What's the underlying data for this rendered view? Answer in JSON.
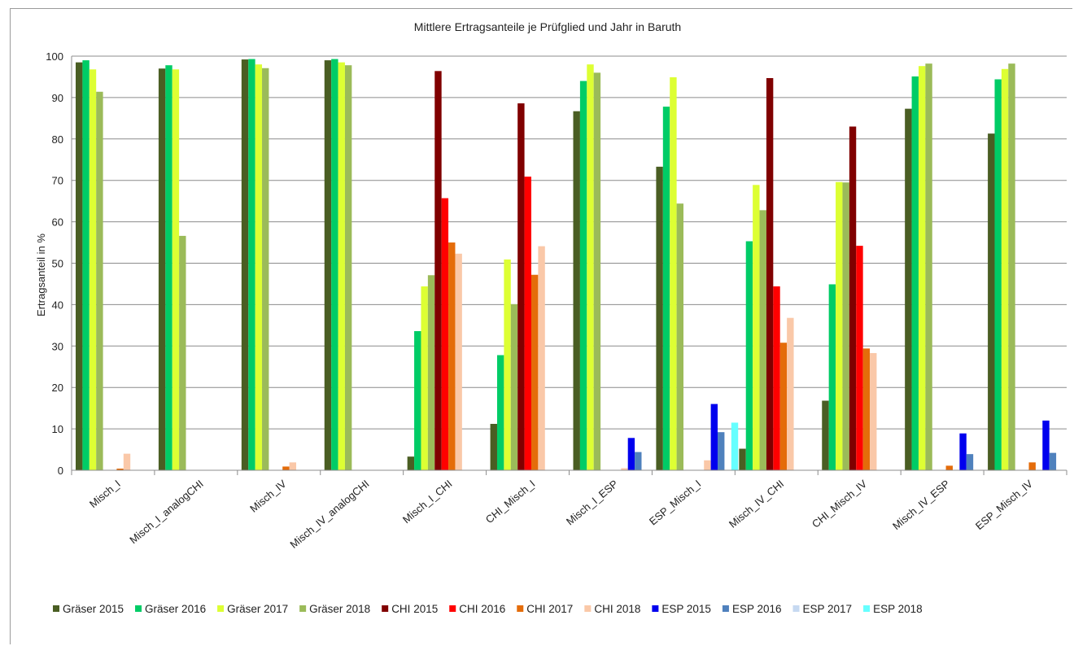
{
  "chart_data": {
    "type": "bar",
    "title": "Mittlere  Ertragsanteile je Prüfglied und  Jahr in Baruth",
    "xlabel": "",
    "ylabel": "Ertragsanteil  in %",
    "ylim": [
      0,
      100
    ],
    "yticks": [
      0,
      10,
      20,
      30,
      40,
      50,
      60,
      70,
      80,
      90,
      100
    ],
    "grid": true,
    "legend_position": "bottom",
    "categories": [
      "Misch_I",
      "Misch_I_analogCHI",
      "Misch_IV",
      "Misch_IV_analogCHI",
      "Misch_I_CHI",
      "CHI_Misch_I",
      "Misch_I_ESP",
      "ESP_Misch_I",
      "Misch_IV_CHI",
      "CHI_Misch_IV",
      "Misch_IV_ESP",
      "ESP_Misch_IV"
    ],
    "series": [
      {
        "name": "Gräser 2015",
        "color": "#4a5e23",
        "values": [
          98.5,
          97,
          99.2,
          99,
          3.3,
          11.2,
          86.7,
          73.3,
          5.2,
          16.8,
          87.3,
          81.3
        ]
      },
      {
        "name": "Gräser 2016",
        "color": "#00cc66",
        "values": [
          99,
          97.8,
          99.3,
          99.3,
          33.6,
          27.8,
          94,
          87.8,
          55.3,
          44.9,
          95.1,
          94.4
        ]
      },
      {
        "name": "Gräser 2017",
        "color": "#ddff33",
        "values": [
          96.8,
          96.8,
          98,
          98.5,
          44.4,
          50.9,
          98,
          94.9,
          68.9,
          69.6,
          97.6,
          96.9
        ]
      },
      {
        "name": "Gräser 2018",
        "color": "#9bbb59",
        "values": [
          91.4,
          56.6,
          97.1,
          97.8,
          47.1,
          40.1,
          96,
          64.4,
          62.8,
          69.5,
          98.2,
          98.2
        ]
      },
      {
        "name": "CHI 2015",
        "color": "#800000",
        "values": [
          0,
          0,
          0,
          0,
          96.4,
          88.6,
          0,
          0,
          94.7,
          83,
          0,
          0
        ]
      },
      {
        "name": "CHI 2016",
        "color": "#ff0000",
        "values": [
          0,
          0,
          0,
          0,
          65.7,
          70.9,
          0,
          0,
          44.4,
          54.2,
          0,
          0
        ]
      },
      {
        "name": "CHI 2017",
        "color": "#e46c0a",
        "values": [
          0.4,
          0,
          0.9,
          0,
          55,
          47.2,
          0,
          0,
          30.8,
          29.4,
          1.1,
          1.9
        ]
      },
      {
        "name": "CHI 2018",
        "color": "#fac8a8",
        "values": [
          4,
          0,
          1.9,
          0,
          52.3,
          54.1,
          0.5,
          2.4,
          36.8,
          28.3,
          0,
          0
        ]
      },
      {
        "name": "ESP 2015",
        "color": "#0000ee",
        "values": [
          0,
          0,
          0,
          0,
          0,
          0,
          7.8,
          16,
          0,
          0,
          8.9,
          12
        ]
      },
      {
        "name": "ESP 2016",
        "color": "#4f81bd",
        "values": [
          0,
          0,
          0,
          0,
          0,
          0,
          4.4,
          9.2,
          0,
          0,
          3.9,
          4.2
        ]
      },
      {
        "name": "ESP 2017",
        "color": "#c6d9f1",
        "values": [
          0,
          0,
          0,
          0,
          0,
          0,
          0,
          0,
          0,
          0,
          0,
          0
        ]
      },
      {
        "name": "ESP 2018",
        "color": "#66ffff",
        "values": [
          0,
          0,
          0,
          0,
          0,
          0,
          0,
          11.5,
          0,
          0,
          0,
          0
        ]
      }
    ]
  }
}
